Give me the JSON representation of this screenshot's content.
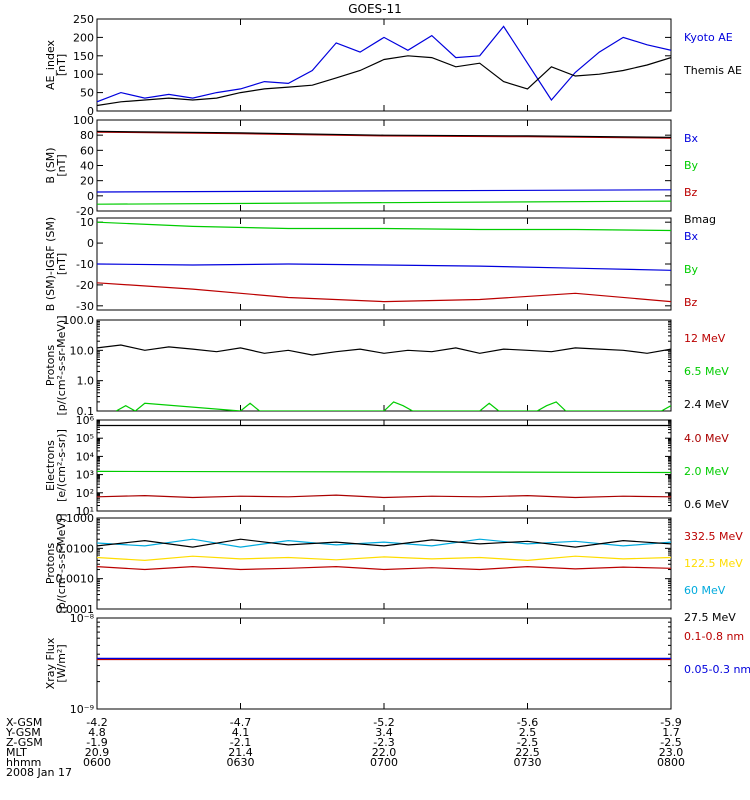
{
  "title": "GOES-11",
  "colors": {
    "black": "#000000",
    "blue": "#0000dd",
    "green": "#00cc00",
    "red": "#bb0000",
    "darkred": "#aa0000",
    "yellow": "#ffdd00",
    "cyan": "#00aadd"
  },
  "chart_data": [
    {
      "type": "line",
      "id": "ae",
      "ylabel": [
        "AE_index",
        "[nT]"
      ],
      "scale": "linear",
      "ylim": [
        0,
        250
      ],
      "yticks": [
        0,
        50,
        100,
        150,
        200,
        250
      ],
      "ytick_labels": [
        "0",
        "50",
        "100",
        "150",
        "200",
        "250"
      ],
      "series": [
        {
          "name": "Kyoto AE",
          "color": "#0000dd",
          "x": [
            0,
            5,
            10,
            15,
            20,
            25,
            30,
            35,
            40,
            45,
            50,
            55,
            60,
            65,
            70,
            75,
            80,
            85,
            90,
            95,
            100,
            105,
            110,
            115,
            120
          ],
          "y": [
            25,
            50,
            35,
            45,
            35,
            50,
            60,
            80,
            75,
            110,
            185,
            160,
            200,
            165,
            205,
            145,
            150,
            230,
            130,
            30,
            105,
            160,
            200,
            180,
            165
          ]
        },
        {
          "name": "Themis AE",
          "color": "#000000",
          "x": [
            0,
            5,
            10,
            15,
            20,
            25,
            30,
            35,
            40,
            45,
            50,
            55,
            60,
            65,
            70,
            75,
            80,
            85,
            90,
            95,
            100,
            105,
            110,
            115,
            120
          ],
          "y": [
            15,
            25,
            30,
            35,
            30,
            35,
            50,
            60,
            65,
            70,
            90,
            110,
            140,
            150,
            145,
            120,
            130,
            80,
            60,
            120,
            95,
            100,
            110,
            125,
            145
          ]
        }
      ]
    },
    {
      "type": "line",
      "id": "bsm",
      "ylabel": [
        "B (SM)",
        "[nT]"
      ],
      "scale": "linear",
      "ylim": [
        -20,
        100
      ],
      "yticks": [
        -20,
        0,
        20,
        40,
        60,
        80,
        100
      ],
      "ytick_labels": [
        "-20",
        "0",
        "20",
        "40",
        "60",
        "80",
        "100"
      ],
      "series": [
        {
          "name": "Bx",
          "color": "#0000dd",
          "x": [
            0,
            120
          ],
          "y": [
            5,
            8
          ]
        },
        {
          "name": "By",
          "color": "#00cc00",
          "x": [
            0,
            120
          ],
          "y": [
            -11,
            -7
          ]
        },
        {
          "name": "Bz",
          "color": "#bb0000",
          "x": [
            0,
            30,
            60,
            90,
            120
          ],
          "y": [
            84,
            82,
            79,
            78,
            76
          ]
        },
        {
          "name": "Bmag",
          "color": "#000000",
          "x": [
            0,
            30,
            60,
            90,
            120
          ],
          "y": [
            85,
            83,
            80,
            79,
            77
          ]
        }
      ]
    },
    {
      "type": "line",
      "id": "bigrf",
      "ylabel": [
        "B (SM)-IGRF (SM)",
        "[nT]"
      ],
      "scale": "linear",
      "ylim": [
        -32,
        12
      ],
      "yticks": [
        -30,
        -20,
        -10,
        0,
        10
      ],
      "ytick_labels": [
        "-30",
        "-20",
        "-10",
        "0",
        "10"
      ],
      "series": [
        {
          "name": "Bx",
          "color": "#0000dd",
          "x": [
            0,
            20,
            40,
            60,
            80,
            100,
            120
          ],
          "y": [
            -10,
            -10.5,
            -10,
            -10.5,
            -11,
            -12,
            -13
          ]
        },
        {
          "name": "By",
          "color": "#00cc00",
          "x": [
            0,
            20,
            40,
            60,
            80,
            100,
            120
          ],
          "y": [
            10,
            8,
            7,
            7,
            6.5,
            6.5,
            6
          ]
        },
        {
          "name": "Bz",
          "color": "#bb0000",
          "x": [
            0,
            20,
            40,
            60,
            80,
            100,
            120
          ],
          "y": [
            -19,
            -22,
            -26,
            -28,
            -27,
            -24,
            -28
          ]
        }
      ]
    },
    {
      "type": "line",
      "id": "protons1",
      "ylabel": [
        "Protons",
        "[p/(cm²-s-sr-MeV)]"
      ],
      "scale": "log",
      "ylim": [
        0.1,
        100
      ],
      "yticks": [
        0.1,
        1,
        10,
        100
      ],
      "ytick_labels": [
        "0.1",
        "1.0",
        "10.0",
        "100.0"
      ],
      "series": [
        {
          "name": "12 MeV",
          "color": "#bb0000",
          "x": [],
          "y": []
        },
        {
          "name": "6.5 MeV",
          "color": "#00cc00",
          "x": [
            4,
            6,
            8,
            10,
            30,
            32,
            34,
            60,
            62,
            64,
            66,
            80,
            82,
            84,
            92,
            94,
            96,
            98,
            118,
            120
          ],
          "y": [
            0.1,
            0.15,
            0.1,
            0.18,
            0.1,
            0.18,
            0.1,
            0.1,
            0.2,
            0.15,
            0.1,
            0.1,
            0.18,
            0.1,
            0.1,
            0.15,
            0.2,
            0.1,
            0.1,
            0.15
          ]
        },
        {
          "name": "2.4 MeV",
          "color": "#000000",
          "x": [
            0,
            5,
            10,
            15,
            20,
            25,
            30,
            35,
            40,
            45,
            50,
            55,
            60,
            65,
            70,
            75,
            80,
            85,
            90,
            95,
            100,
            105,
            110,
            115,
            120
          ],
          "y": [
            12,
            15,
            10,
            13,
            11,
            9,
            12,
            8,
            10,
            7,
            9,
            11,
            8,
            10,
            9,
            12,
            8,
            11,
            10,
            9,
            12,
            11,
            10,
            8,
            11
          ]
        }
      ]
    },
    {
      "type": "line",
      "id": "electrons",
      "ylabel": [
        "Electrons",
        "[e/(cm²-s-sr)]"
      ],
      "scale": "log",
      "ylim": [
        10,
        1000000
      ],
      "yticks": [
        10,
        100,
        1000,
        10000,
        100000,
        1000000
      ],
      "ytick_labels": [
        "10¹",
        "10²",
        "10³",
        "10⁴",
        "10⁵",
        "10⁶"
      ],
      "series": [
        {
          "name": "4.0 MeV",
          "color": "#aa0000",
          "x": [
            0,
            10,
            20,
            30,
            40,
            50,
            60,
            70,
            80,
            90,
            100,
            110,
            120
          ],
          "y": [
            60,
            70,
            55,
            65,
            60,
            75,
            55,
            65,
            60,
            70,
            55,
            65,
            60
          ]
        },
        {
          "name": "2.0 MeV",
          "color": "#00cc00",
          "x": [
            0,
            60,
            120
          ],
          "y": [
            1500,
            1400,
            1300
          ]
        },
        {
          "name": "0.6 MeV",
          "color": "#000000",
          "x": [
            0,
            60,
            120
          ],
          "y": [
            500000,
            500000,
            500000
          ]
        }
      ]
    },
    {
      "type": "line",
      "id": "protons2",
      "ylabel": [
        "Protons",
        "[p/(cm²-s-sr-MeV)]"
      ],
      "scale": "log",
      "ylim": [
        0.0001,
        0.1
      ],
      "yticks": [
        0.0001,
        0.001,
        0.01,
        0.1
      ],
      "ytick_labels": [
        "0.0001",
        "0.0010",
        "0.0100",
        "0.1000"
      ],
      "series": [
        {
          "name": "332.5 MeV",
          "color": "#bb0000",
          "x": [
            0,
            10,
            20,
            30,
            40,
            50,
            60,
            70,
            80,
            90,
            100,
            110,
            120
          ],
          "y": [
            0.0025,
            0.002,
            0.0025,
            0.002,
            0.0022,
            0.0025,
            0.002,
            0.0023,
            0.002,
            0.0025,
            0.0021,
            0.0024,
            0.0022
          ]
        },
        {
          "name": "122.5 MeV",
          "color": "#ffdd00",
          "x": [
            0,
            10,
            20,
            30,
            40,
            50,
            60,
            70,
            80,
            90,
            100,
            110,
            120
          ],
          "y": [
            0.005,
            0.004,
            0.0055,
            0.0045,
            0.005,
            0.0042,
            0.0052,
            0.0045,
            0.005,
            0.004,
            0.0055,
            0.0045,
            0.005
          ]
        },
        {
          "name": "60 MeV",
          "color": "#00aadd",
          "x": [
            0,
            10,
            20,
            30,
            40,
            50,
            60,
            70,
            80,
            90,
            100,
            110,
            120
          ],
          "y": [
            0.015,
            0.012,
            0.02,
            0.011,
            0.018,
            0.013,
            0.016,
            0.012,
            0.02,
            0.014,
            0.017,
            0.012,
            0.016
          ]
        },
        {
          "name": "27.5 MeV",
          "color": "#000000",
          "x": [
            0,
            10,
            20,
            30,
            40,
            50,
            60,
            70,
            80,
            90,
            100,
            110,
            120
          ],
          "y": [
            0.012,
            0.018,
            0.011,
            0.02,
            0.013,
            0.016,
            0.012,
            0.019,
            0.014,
            0.017,
            0.011,
            0.018,
            0.014
          ]
        }
      ]
    },
    {
      "type": "line",
      "id": "xray",
      "ylabel": [
        "Xray Flux",
        "[W/m²]"
      ],
      "scale": "log",
      "ylim": [
        1e-09,
        1e-08
      ],
      "yticks": [
        1e-09,
        1e-08
      ],
      "ytick_labels": [
        "10⁻⁹",
        "10⁻⁸"
      ],
      "series": [
        {
          "name": "0.1-0.8 nm",
          "color": "#bb0000",
          "x": [
            0,
            120
          ],
          "y": [
            3.5e-09,
            3.5e-09
          ]
        },
        {
          "name": "0.05-0.3 nm",
          "color": "#0000dd",
          "x": [
            0,
            120
          ],
          "y": [
            3.6e-09,
            3.6e-09
          ]
        }
      ]
    }
  ],
  "xaxis": {
    "xlim": [
      0,
      120
    ],
    "ticks": [
      0,
      30,
      60,
      90,
      120
    ],
    "rows": [
      {
        "label": "X-GSM",
        "values": [
          "-4.2",
          "-4.7",
          "-5.2",
          "-5.6",
          "-5.9"
        ]
      },
      {
        "label": "Y-GSM",
        "values": [
          "4.8",
          "4.1",
          "3.4",
          "2.5",
          "1.7"
        ]
      },
      {
        "label": "Z-GSM",
        "values": [
          "-1.9",
          "-2.1",
          "-2.3",
          "-2.5",
          "-2.5"
        ]
      },
      {
        "label": "MLT",
        "values": [
          "20.9",
          "21.4",
          "22.0",
          "22.5",
          "23.0"
        ]
      },
      {
        "label": "hhmm",
        "values": [
          "0600",
          "0630",
          "0700",
          "0730",
          "0800"
        ]
      }
    ],
    "date": "2008 Jan 17"
  }
}
